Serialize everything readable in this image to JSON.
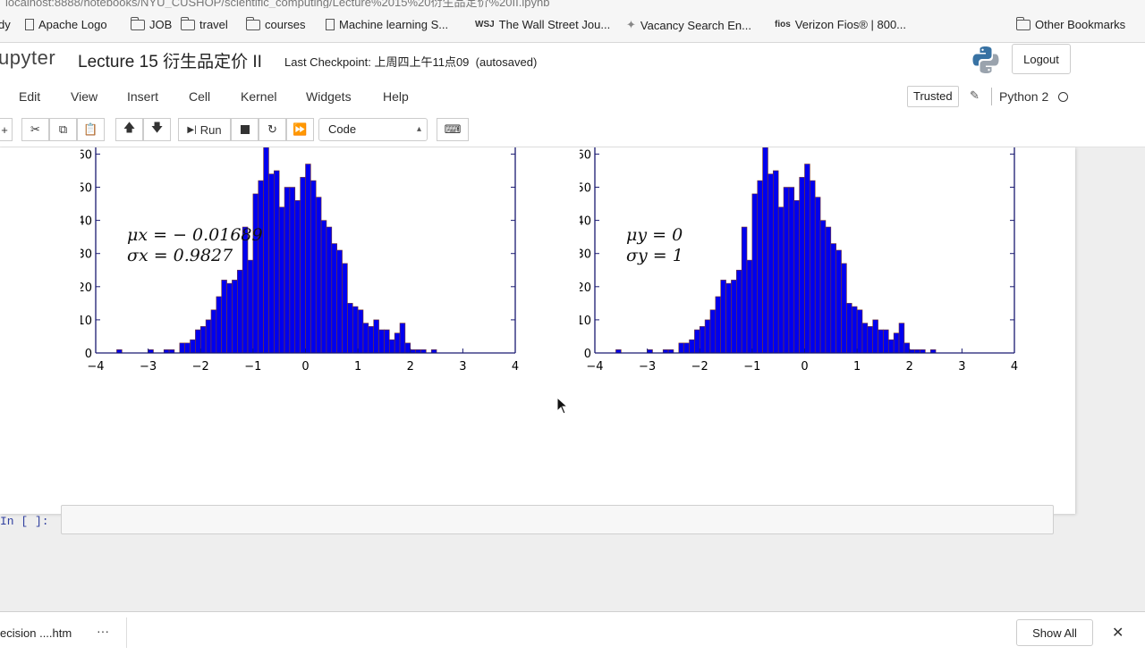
{
  "browser": {
    "url": "localhost:8888/notebooks/NYU_CUSHOP/scientific_computing/Lecture%2015%20衍生品定价%20II.ipynb",
    "bookmarks": [
      {
        "label": "dy",
        "icon": "none"
      },
      {
        "label": "Apache Logo",
        "icon": "doc-icon"
      },
      {
        "label": "JOB",
        "icon": "folder-icon"
      },
      {
        "label": "travel",
        "icon": "folder-icon"
      },
      {
        "label": "courses",
        "icon": "folder-icon"
      },
      {
        "label": "Machine learning S...",
        "icon": "doc-icon"
      },
      {
        "label": "The Wall Street Jou...",
        "icon": "wsj-icon"
      },
      {
        "label": "Vacancy Search En...",
        "icon": "star-icon"
      },
      {
        "label": "Verizon Fios® | 800...",
        "icon": "fios-icon"
      },
      {
        "label": "Other Bookmarks",
        "icon": "folder-icon"
      }
    ]
  },
  "header": {
    "brand": "upyter",
    "title": "Lecture 15 衍生品定价 II",
    "checkpoint": "Last Checkpoint: 上周四上午11点09",
    "autosaved": "(autosaved)",
    "logout_label": "Logout"
  },
  "menubar": {
    "items": [
      "Edit",
      "View",
      "Insert",
      "Cell",
      "Kernel",
      "Widgets",
      "Help"
    ],
    "trusted_label": "Trusted",
    "kernel_name": "Python 2"
  },
  "toolbar": {
    "run_label": "Run",
    "cell_type": "Code"
  },
  "cell": {
    "prompt": "In [ ]:"
  },
  "downloads": {
    "file_name": "ecision ....htm",
    "more": "···",
    "show_all_label": "Show All",
    "close": "✕"
  },
  "chart_data": [
    {
      "type": "bar",
      "subtype": "histogram",
      "annotation_lines": [
        "μx = − 0.01689",
        "σx = 0.9827"
      ],
      "xlim": [
        -4,
        4
      ],
      "ylim": [
        0,
        62
      ],
      "xticks": [
        -4,
        -3,
        -2,
        -1,
        0,
        1,
        2,
        3,
        4
      ],
      "yticks": [
        0,
        10,
        20,
        30,
        40,
        50,
        60
      ],
      "bin_start": -3.7,
      "bin_width": 0.1,
      "values": [
        0,
        1,
        0,
        0,
        0,
        0,
        0,
        1,
        0,
        0,
        1,
        1,
        0,
        3,
        3,
        4,
        7,
        8,
        10,
        13,
        17,
        22,
        21,
        22,
        25,
        38,
        28,
        48,
        52,
        62,
        54,
        55,
        44,
        50,
        50,
        46,
        53,
        57,
        52,
        47,
        40,
        38,
        33,
        31,
        27,
        15,
        14,
        13,
        9,
        8,
        10,
        7,
        7,
        4,
        6,
        9,
        3,
        1,
        1,
        1,
        0,
        1,
        0,
        0,
        0,
        0,
        0,
        0,
        0,
        0
      ],
      "bar_color": "#0000ee",
      "edge_color": "#7a3b2e",
      "axis_color": "#191970"
    },
    {
      "type": "bar",
      "subtype": "histogram",
      "annotation_lines": [
        "μy = 0",
        "σy = 1"
      ],
      "xlim": [
        -4,
        4
      ],
      "ylim": [
        0,
        62
      ],
      "xticks": [
        -4,
        -3,
        -2,
        -1,
        0,
        1,
        2,
        3,
        4
      ],
      "yticks": [
        0,
        10,
        20,
        30,
        40,
        50,
        60
      ],
      "bin_start": -3.7,
      "bin_width": 0.1,
      "values": [
        0,
        1,
        0,
        0,
        0,
        0,
        0,
        1,
        0,
        0,
        1,
        1,
        0,
        3,
        3,
        4,
        7,
        8,
        10,
        13,
        17,
        22,
        21,
        22,
        25,
        38,
        28,
        48,
        52,
        62,
        54,
        55,
        44,
        50,
        50,
        46,
        53,
        57,
        52,
        47,
        40,
        38,
        33,
        31,
        27,
        15,
        14,
        13,
        9,
        8,
        10,
        7,
        7,
        4,
        6,
        9,
        3,
        1,
        1,
        1,
        0,
        1,
        0,
        0,
        0,
        0,
        0,
        0,
        0,
        0
      ],
      "bar_color": "#0000ee",
      "edge_color": "#7a3b2e",
      "axis_color": "#191970"
    }
  ]
}
